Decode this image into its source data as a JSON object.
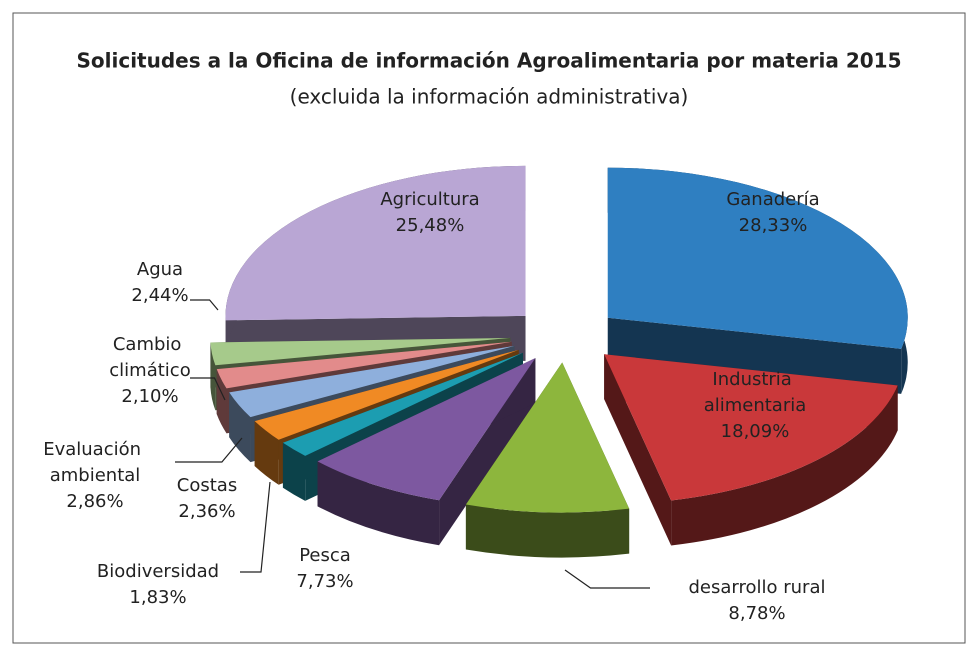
{
  "chart_data": {
    "type": "pie3d",
    "title": "Solicitudes a la Oficina de información Agroalimentaria por materia 2015",
    "subtitle": "(excluida la información administrativa)",
    "categories": [
      "Ganadería",
      "Industria alimentaria",
      "desarrollo rural",
      "Pesca",
      "Biodiversidad",
      "Costas",
      "Evaluación ambiental",
      "Cambio climático",
      "Agua",
      "Agricultura"
    ],
    "values": [
      28.33,
      18.09,
      8.78,
      7.73,
      1.83,
      2.36,
      2.86,
      2.1,
      2.44,
      25.48
    ],
    "value_labels": [
      "28,33%",
      "18,09%",
      "8,78%",
      "7,73%",
      "1,83%",
      "2,36%",
      "2,86%",
      "2,10%",
      "2,44%",
      "25,48%"
    ],
    "colors": [
      "#2f7fc1",
      "#c9383a",
      "#8db63d",
      "#7d58a0",
      "#1c9db1",
      "#f08a24",
      "#8eafdc",
      "#e28b8b",
      "#a6ca8b",
      "#b9a6d4"
    ]
  }
}
